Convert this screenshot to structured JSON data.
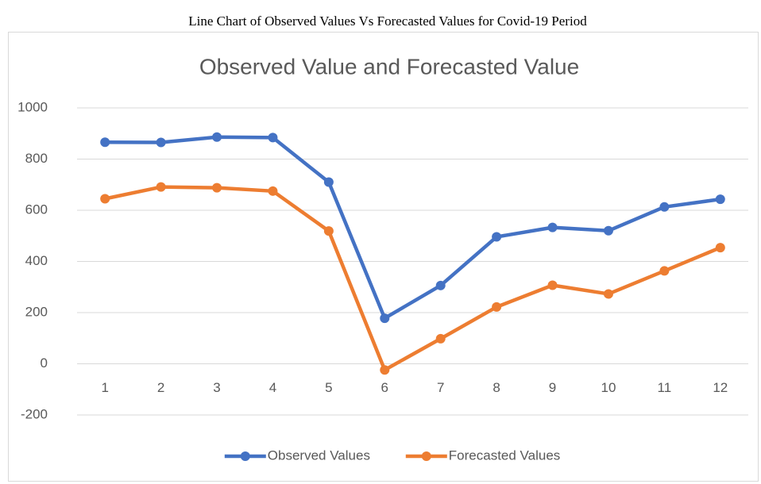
{
  "caption": "Line Chart of Observed Values Vs Forecasted Values for Covid-19 Period",
  "chart_data": {
    "type": "line",
    "title": "Observed Value and Forecasted Value",
    "categories": [
      "1",
      "2",
      "3",
      "4",
      "5",
      "6",
      "7",
      "8",
      "9",
      "10",
      "11",
      "12"
    ],
    "series": [
      {
        "name": "Observed Values",
        "color": "#4472c4",
        "values": [
          866,
          865,
          886,
          884,
          710,
          178,
          306,
          496,
          533,
          520,
          613,
          643
        ]
      },
      {
        "name": "Forecasted Values",
        "color": "#ed7d31",
        "values": [
          645,
          691,
          688,
          675,
          519,
          -24,
          98,
          222,
          307,
          273,
          363,
          454
        ]
      }
    ],
    "ylim": [
      -200,
      1000
    ],
    "yticks": [
      -200,
      0,
      200,
      400,
      600,
      800,
      1000
    ],
    "grid": true,
    "legend": "bottom"
  }
}
